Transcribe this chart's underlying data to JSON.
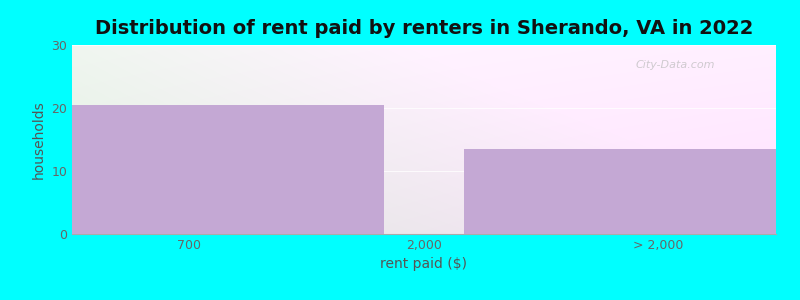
{
  "title": "Distribution of rent paid by renters in Sherando, VA in 2022",
  "xlabel": "rent paid ($)",
  "ylabel": "households",
  "categories": [
    "700",
    "2,000",
    "> 2,000"
  ],
  "values": [
    20.5,
    0,
    13.5
  ],
  "bar_color": "#c4a8d4",
  "ylim": [
    0,
    30
  ],
  "yticks": [
    0,
    10,
    20,
    30
  ],
  "background_color": "#00ffff",
  "title_fontsize": 14,
  "axis_label_fontsize": 10,
  "tick_fontsize": 9,
  "watermark": "City-Data.com"
}
